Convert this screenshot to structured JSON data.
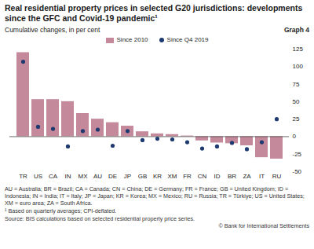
{
  "chart_data": {
    "type": "bar",
    "title": "Real residential property prices in selected G20 jurisdictions: developments since the GFC and Covid-19 pandemic¹",
    "graph_number": "Graph 4",
    "subtitle": "Cumulative changes, in per cent",
    "categories": [
      "TR",
      "US",
      "CA",
      "IN",
      "MX",
      "AU",
      "DE",
      "JP",
      "GB",
      "KR",
      "XM",
      "FR",
      "CN",
      "ID",
      "BR",
      "ZA",
      "IT",
      "RU"
    ],
    "series": [
      {
        "name": "Since 2010",
        "type": "bar",
        "color": "#c4899a",
        "values": [
          120,
          53,
          53,
          50,
          33,
          25,
          20,
          15,
          7,
          4,
          3,
          1,
          -6,
          -9,
          -10,
          -13,
          -30,
          -32
        ]
      },
      {
        "name": "Since Q4 2019",
        "type": "scatter",
        "marker": "circle",
        "color": "#1f3a70",
        "values": [
          107,
          14,
          11,
          -14,
          8,
          10,
          -13,
          8,
          -5,
          -3,
          -4,
          -8,
          -17,
          -14,
          -9,
          -18,
          -8,
          25
        ]
      }
    ],
    "ylim": [
      -50,
      125
    ],
    "yticks": [
      -50,
      -25,
      0,
      25,
      50,
      75,
      100,
      125
    ],
    "grid": false,
    "legend": "top",
    "data_labels": false,
    "notes": [
      "AU = Australia; BR = Brazil; CA = Canada; CN = China; DE = Germany; FR = France; GB = United Kingdom; ID = Indonesia; IN = India; IT = Italy; JP = Japan; KR = Korea; MX = Mexico; RU = Russia; TR = Türkiye; US = United States; XM = euro area; ZA = South Africa.",
      "¹ Based on quarterly averages; CPI-deflated.",
      "Source: BIS calculations based on selected residential property price series."
    ],
    "copyright": "© Bank for International Settlements"
  }
}
